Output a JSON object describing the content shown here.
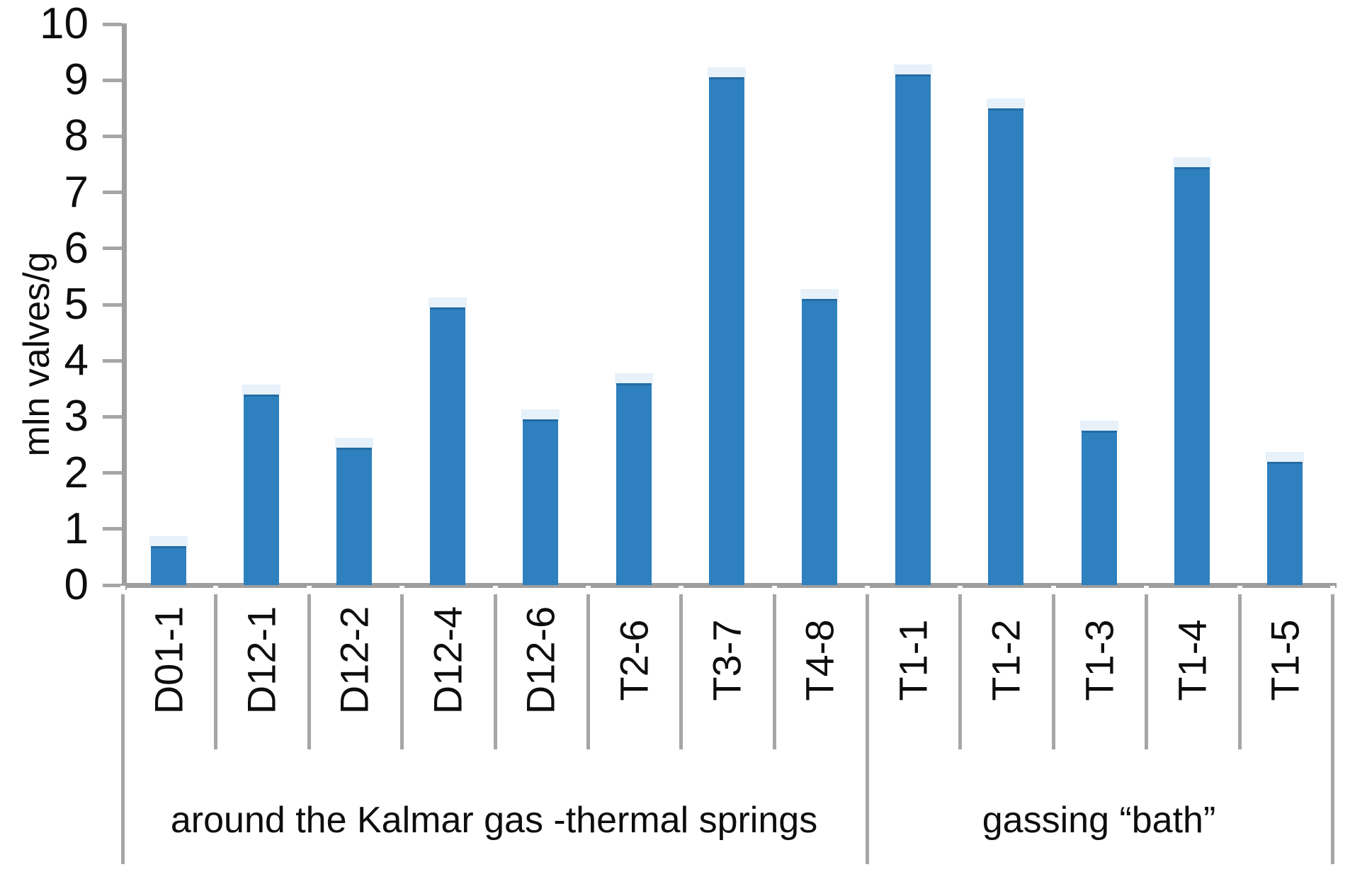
{
  "chart_data": {
    "type": "bar",
    "title": "",
    "ylabel": "mln valves/g",
    "xlabel": "",
    "ylim": [
      0,
      10
    ],
    "yticks": [
      0,
      1,
      2,
      3,
      4,
      5,
      6,
      7,
      8,
      9,
      10
    ],
    "grid": false,
    "legend_position": "none",
    "bar_color": "#2e80be",
    "axis_color": "#9e9e9e",
    "tick_color": "#a6a6a6",
    "text_color": "#0d0d0d",
    "categories": [
      "D01-1",
      "D12-1",
      "D12-2",
      "D12-4",
      "D12-6",
      "T2-6",
      "T3-7",
      "T4-8",
      "T1-1",
      "T1-2",
      "T1-3",
      "T1-4",
      "T1-5"
    ],
    "values": [
      0.7,
      3.4,
      2.45,
      4.95,
      2.95,
      3.6,
      9.05,
      5.1,
      9.1,
      8.5,
      2.75,
      7.45,
      2.2
    ],
    "groups": [
      {
        "label": "around the Kalmar gas -thermal springs",
        "start": 0,
        "count": 8
      },
      {
        "label": "gassing “bath”",
        "start": 8,
        "count": 5
      }
    ]
  }
}
